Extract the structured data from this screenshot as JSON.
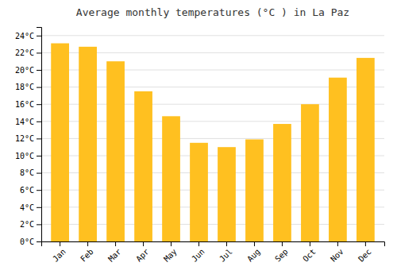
{
  "chart_data": {
    "type": "bar",
    "title": "Average monthly temperatures (°C ) in La Paz",
    "categories": [
      "Jan",
      "Feb",
      "Mar",
      "Apr",
      "May",
      "Jun",
      "Jul",
      "Aug",
      "Sep",
      "Oct",
      "Nov",
      "Dec"
    ],
    "values": [
      23.1,
      22.7,
      21.0,
      17.5,
      14.6,
      11.5,
      11.0,
      11.9,
      13.7,
      16.0,
      19.1,
      21.4
    ],
    "color": "#FFC020",
    "ylim": [
      0,
      25
    ],
    "yticks": [
      {
        "value": 0,
        "label": "0°C"
      },
      {
        "value": 2,
        "label": "2°C"
      },
      {
        "value": 4,
        "label": "4°C"
      },
      {
        "value": 6,
        "label": "6°C"
      },
      {
        "value": 8,
        "label": "8°C"
      },
      {
        "value": 10,
        "label": "10°C"
      },
      {
        "value": 12,
        "label": "12°C"
      },
      {
        "value": 14,
        "label": "14°C"
      },
      {
        "value": 16,
        "label": "16°C"
      },
      {
        "value": 18,
        "label": "18°C"
      },
      {
        "value": 20,
        "label": "20°C"
      },
      {
        "value": 22,
        "label": "22°C"
      },
      {
        "value": 24,
        "label": "24°C"
      }
    ],
    "grid": true
  }
}
